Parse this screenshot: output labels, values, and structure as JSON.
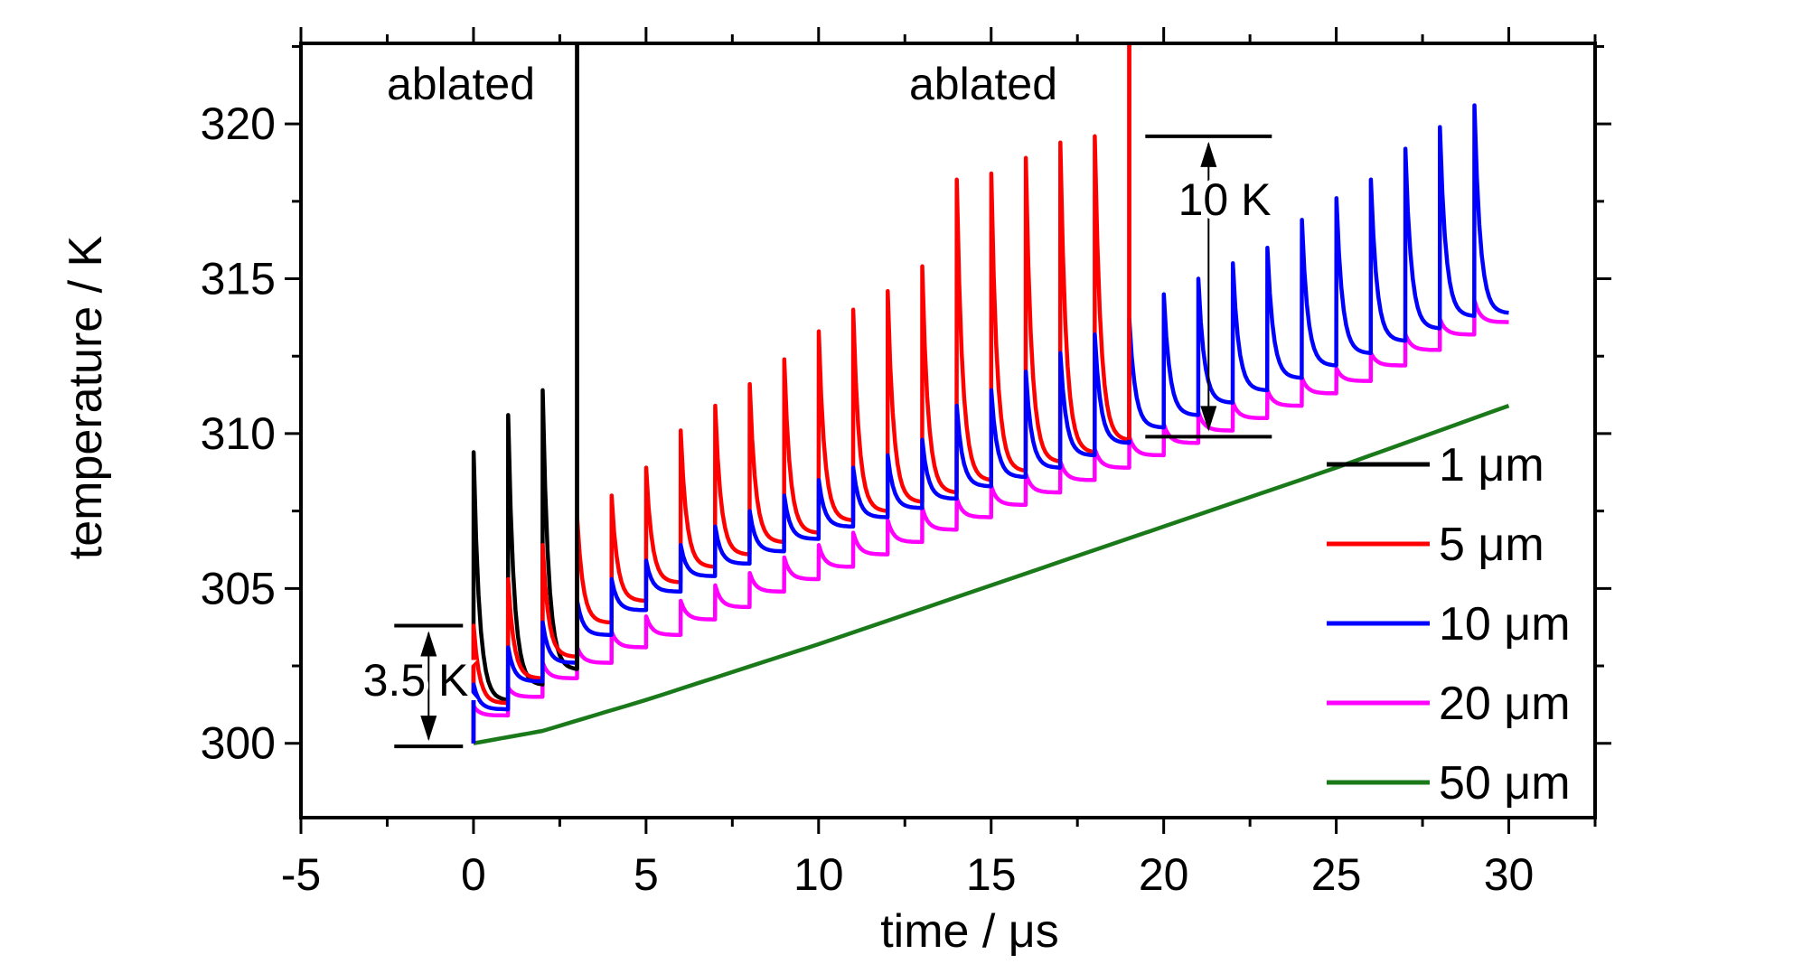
{
  "chart_data": {
    "type": "line",
    "title": "",
    "xlabel": "time / μs",
    "ylabel": "temperature / K",
    "xlim": [
      -5,
      32.5
    ],
    "ylim": [
      297.6,
      322.6
    ],
    "xticks": [
      -5,
      0,
      5,
      10,
      15,
      20,
      25,
      30
    ],
    "yticks": [
      300,
      305,
      310,
      315,
      320
    ],
    "legend_position": "lower-right",
    "grid": false,
    "series": [
      {
        "name": "1 μm",
        "color": "#000000",
        "pulse_times": [
          0,
          1,
          2,
          3
        ],
        "pulse_peaks": [
          309.4,
          310.6,
          311.4,
          322.6
        ],
        "trough_before_pulse": [
          300.0,
          301.4,
          301.9,
          302.4
        ],
        "ablated_at": 3
      },
      {
        "name": "5 μm",
        "color": "#ff0000",
        "pulse_times": [
          0,
          1,
          2,
          3,
          4,
          5,
          6,
          7,
          8,
          9,
          10,
          11,
          12,
          13,
          14,
          15,
          16,
          17,
          18,
          19
        ],
        "pulse_peaks": [
          303.8,
          305.3,
          306.4,
          307.3,
          308.0,
          308.9,
          310.1,
          310.9,
          311.6,
          312.4,
          313.3,
          314.0,
          314.6,
          315.4,
          318.2,
          318.4,
          318.9,
          319.4,
          319.6,
          322.6
        ],
        "trough_before_pulse": [
          300.0,
          301.3,
          302.1,
          302.8,
          303.9,
          304.6,
          305.2,
          305.7,
          306.1,
          306.5,
          306.8,
          307.2,
          307.5,
          307.8,
          308.1,
          308.5,
          308.8,
          309.1,
          309.4,
          309.8
        ],
        "ablated_at": 19
      },
      {
        "name": "10 μm",
        "color": "#0000ff",
        "pulse_times": [
          0,
          1,
          2,
          3,
          4,
          5,
          6,
          7,
          8,
          9,
          10,
          11,
          12,
          13,
          14,
          15,
          16,
          17,
          18,
          19,
          20,
          21,
          22,
          23,
          24,
          25,
          26,
          27,
          28,
          29
        ],
        "pulse_peaks": [
          301.9,
          303.1,
          303.9,
          304.6,
          305.3,
          305.9,
          306.4,
          307.0,
          307.5,
          308.0,
          308.5,
          308.9,
          309.3,
          309.8,
          310.9,
          311.4,
          312.0,
          312.6,
          313.2,
          313.7,
          314.5,
          315.0,
          315.5,
          316.0,
          316.9,
          317.6,
          318.2,
          319.2,
          319.9,
          320.6
        ],
        "trough_before_pulse": [
          300.0,
          301.1,
          302.0,
          302.6,
          303.5,
          304.3,
          304.9,
          305.4,
          305.8,
          306.2,
          306.6,
          307.0,
          307.3,
          307.6,
          307.9,
          308.3,
          308.6,
          308.9,
          309.3,
          309.7,
          310.2,
          310.6,
          311.0,
          311.4,
          311.8,
          312.2,
          312.6,
          313.0,
          313.4,
          313.8
        ],
        "end": [
          30,
          313.9
        ]
      },
      {
        "name": "20 μm",
        "color": "#ff00ff",
        "pulse_times": [
          0,
          1,
          2,
          3,
          4,
          5,
          6,
          7,
          8,
          9,
          10,
          11,
          12,
          13,
          14,
          15,
          16,
          17,
          18,
          19,
          20,
          21,
          22,
          23,
          24,
          25,
          26,
          27,
          28,
          29
        ],
        "pulse_peaks": [
          301.2,
          301.8,
          302.6,
          303.1,
          303.6,
          304.1,
          304.6,
          305.1,
          305.5,
          306.0,
          306.4,
          306.8,
          307.2,
          307.6,
          307.9,
          308.3,
          308.7,
          309.1,
          309.5,
          309.9,
          310.3,
          310.7,
          311.0,
          311.4,
          311.8,
          312.1,
          312.6,
          313.2,
          313.7,
          314.3
        ],
        "trough_before_pulse": [
          300.0,
          300.9,
          301.5,
          302.1,
          302.6,
          303.1,
          303.5,
          304.0,
          304.4,
          304.9,
          305.3,
          305.7,
          306.1,
          306.5,
          306.9,
          307.3,
          307.7,
          308.1,
          308.5,
          308.9,
          309.3,
          309.7,
          310.1,
          310.5,
          310.9,
          311.3,
          311.7,
          312.2,
          312.7,
          313.2
        ],
        "end": [
          30,
          313.6
        ]
      },
      {
        "name": "50 μm",
        "color": "#1a7a1a",
        "x": [
          0,
          2,
          5,
          10,
          15,
          20,
          25,
          30
        ],
        "y": [
          300.0,
          300.4,
          301.4,
          303.2,
          305.1,
          307.0,
          308.9,
          310.9
        ]
      }
    ],
    "annotations": {
      "ablated_left": "ablated",
      "ablated_right": "ablated",
      "delta_small": "3.5 K",
      "delta_large": "10 K",
      "delta_small_range": [
        299.9,
        303.8
      ],
      "delta_small_x": -1.3,
      "delta_large_range": [
        309.9,
        319.6
      ],
      "delta_large_x": 21.3
    }
  }
}
